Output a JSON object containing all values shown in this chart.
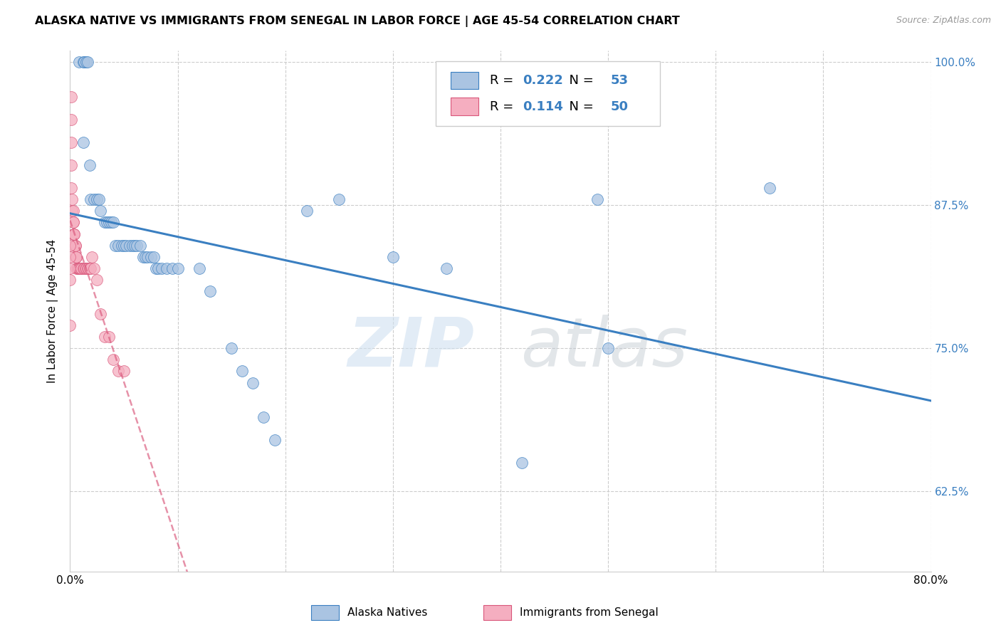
{
  "title": "ALASKA NATIVE VS IMMIGRANTS FROM SENEGAL IN LABOR FORCE | AGE 45-54 CORRELATION CHART",
  "source": "Source: ZipAtlas.com",
  "ylabel": "In Labor Force | Age 45-54",
  "xlim": [
    0.0,
    0.8
  ],
  "ylim": [
    0.555,
    1.01
  ],
  "xticks": [
    0.0,
    0.1,
    0.2,
    0.3,
    0.4,
    0.5,
    0.6,
    0.7,
    0.8
  ],
  "yticks": [
    0.625,
    0.75,
    0.875,
    1.0
  ],
  "xtick_labels": [
    "0.0%",
    "",
    "",
    "",
    "",
    "",
    "",
    "",
    "80.0%"
  ],
  "ytick_labels": [
    "62.5%",
    "75.0%",
    "87.5%",
    "100.0%"
  ],
  "blue_R": 0.222,
  "blue_N": 53,
  "pink_R": 0.114,
  "pink_N": 50,
  "blue_color": "#aac4e2",
  "blue_line_color": "#3a7fc1",
  "pink_color": "#f5aec0",
  "pink_line_color": "#d9567a",
  "legend_label_blue": "Alaska Natives",
  "legend_label_pink": "Immigrants from Senegal",
  "blue_x": [
    0.008,
    0.012,
    0.013,
    0.015,
    0.016,
    0.012,
    0.018,
    0.019,
    0.022,
    0.025,
    0.027,
    0.028,
    0.032,
    0.034,
    0.036,
    0.038,
    0.04,
    0.042,
    0.045,
    0.048,
    0.05,
    0.052,
    0.055,
    0.058,
    0.06,
    0.062,
    0.065,
    0.068,
    0.07,
    0.072,
    0.075,
    0.078,
    0.08,
    0.082,
    0.085,
    0.09,
    0.095,
    0.1,
    0.12,
    0.13,
    0.15,
    0.16,
    0.17,
    0.18,
    0.19,
    0.22,
    0.25,
    0.3,
    0.35,
    0.42,
    0.49,
    0.65,
    0.5
  ],
  "blue_y": [
    1.0,
    1.0,
    1.0,
    1.0,
    1.0,
    0.93,
    0.91,
    0.88,
    0.88,
    0.88,
    0.88,
    0.87,
    0.86,
    0.86,
    0.86,
    0.86,
    0.86,
    0.84,
    0.84,
    0.84,
    0.84,
    0.84,
    0.84,
    0.84,
    0.84,
    0.84,
    0.84,
    0.83,
    0.83,
    0.83,
    0.83,
    0.83,
    0.82,
    0.82,
    0.82,
    0.82,
    0.82,
    0.82,
    0.82,
    0.8,
    0.75,
    0.73,
    0.72,
    0.69,
    0.67,
    0.87,
    0.88,
    0.83,
    0.82,
    0.65,
    0.88,
    0.89,
    0.75
  ],
  "pink_x": [
    0.001,
    0.001,
    0.001,
    0.001,
    0.001,
    0.002,
    0.002,
    0.003,
    0.003,
    0.003,
    0.003,
    0.004,
    0.004,
    0.004,
    0.005,
    0.005,
    0.005,
    0.006,
    0.006,
    0.006,
    0.007,
    0.007,
    0.008,
    0.008,
    0.009,
    0.009,
    0.01,
    0.01,
    0.012,
    0.013,
    0.014,
    0.015,
    0.016,
    0.017,
    0.018,
    0.019,
    0.02,
    0.022,
    0.025,
    0.028,
    0.032,
    0.036,
    0.04,
    0.045,
    0.05,
    0.0,
    0.0,
    0.0,
    0.0,
    0.0
  ],
  "pink_y": [
    0.97,
    0.95,
    0.93,
    0.91,
    0.89,
    0.88,
    0.87,
    0.87,
    0.86,
    0.86,
    0.85,
    0.85,
    0.85,
    0.84,
    0.84,
    0.84,
    0.83,
    0.83,
    0.83,
    0.82,
    0.82,
    0.82,
    0.82,
    0.82,
    0.82,
    0.82,
    0.82,
    0.82,
    0.82,
    0.82,
    0.82,
    0.82,
    0.82,
    0.82,
    0.82,
    0.82,
    0.83,
    0.82,
    0.81,
    0.78,
    0.76,
    0.76,
    0.74,
    0.73,
    0.73,
    0.84,
    0.83,
    0.82,
    0.81,
    0.77
  ]
}
